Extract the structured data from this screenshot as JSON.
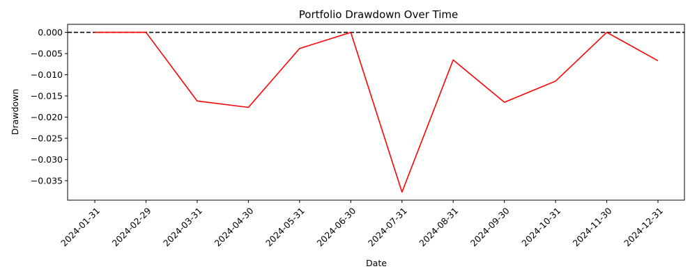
{
  "chart_data": {
    "type": "line",
    "title": "Portfolio Drawdown Over Time",
    "xlabel": "Date",
    "ylabel": "Drawdown",
    "x": [
      "2024-01-31",
      "2024-02-29",
      "2024-03-31",
      "2024-04-30",
      "2024-05-31",
      "2024-06-30",
      "2024-07-31",
      "2024-08-31",
      "2024-09-30",
      "2024-10-31",
      "2024-11-30",
      "2024-12-31"
    ],
    "series": [
      {
        "values": [
          0.0,
          0.0,
          -0.0162,
          -0.0177,
          -0.0038,
          0.0,
          -0.0377,
          -0.0065,
          -0.0165,
          -0.0115,
          0.0,
          -0.0067
        ],
        "color": "#ff0000"
      }
    ],
    "reference_line": {
      "y": 0.0,
      "style": "dashed",
      "color": "#000000"
    },
    "yticks": [
      0.0,
      -0.005,
      -0.01,
      -0.015,
      -0.02,
      -0.025,
      -0.03,
      -0.035
    ],
    "ytick_labels": [
      "0.000",
      "−0.005",
      "−0.010",
      "−0.015",
      "−0.020",
      "−0.025",
      "−0.030",
      "−0.035"
    ],
    "ylim": [
      -0.0396,
      0.0019
    ],
    "grid": false,
    "legend": "none"
  }
}
